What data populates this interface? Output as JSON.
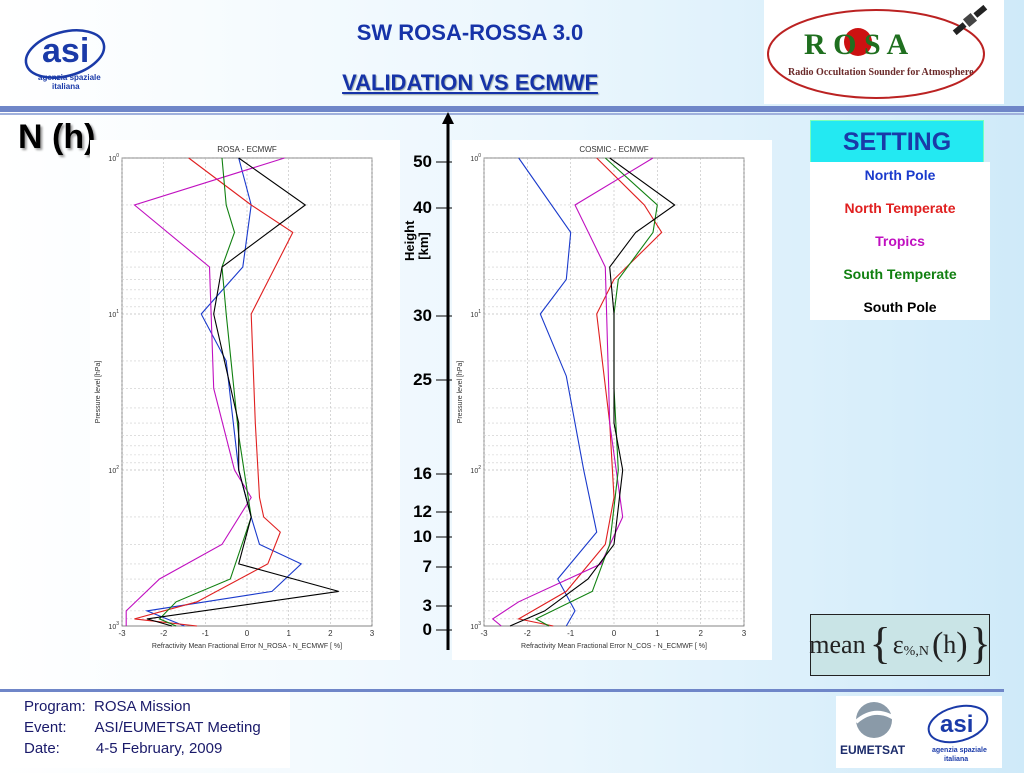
{
  "header": {
    "title": "SW ROSA-ROSSA 3.0",
    "subtitle": "VALIDATION VS ECMWF",
    "quantity": "N (h)"
  },
  "logos": {
    "asi_text_line1": "agenzia spaziale",
    "asi_text_line2": "italiana",
    "rosa_letters": "R O S A",
    "rosa_tagline": "Radio Occultation Sounder for Atmosphere",
    "eumetsat_text": "EUMETSAT"
  },
  "legend": {
    "title": "SETTING",
    "items": [
      {
        "label": "North Pole",
        "color": "#1a3acc"
      },
      {
        "label": "North Temperate",
        "color": "#e02020"
      },
      {
        "label": "Tropics",
        "color": "#c010c0"
      },
      {
        "label": "South Temperate",
        "color": "#108010"
      },
      {
        "label": "South Pole",
        "color": "#000000"
      }
    ]
  },
  "height_axis": {
    "label_line1": "Height",
    "label_line2": "[km]",
    "ticks": [
      "50",
      "40",
      "30",
      "25",
      "16",
      "12",
      "10",
      "7",
      "3",
      "0"
    ]
  },
  "formula": {
    "text": "mean",
    "symbol": "ε",
    "subscript": "%,N",
    "arg": "h"
  },
  "footer": {
    "program_label": "Program:",
    "program_value": "ROSA Mission",
    "event_label": "Event:",
    "event_value": "ASI/EUMETSAT Meeting",
    "date_label": "Date:",
    "date_value": "4-5 February, 2009"
  },
  "chart_data": [
    {
      "type": "line",
      "title": "ROSA - ECMWF",
      "xlabel": "Refractivity Mean Fractional Error N_ROSA - N_ECMWF [ %]",
      "ylabel": "Pressure level [hPa]",
      "xlim": [
        -3,
        3
      ],
      "ylim": [
        1000,
        1
      ],
      "y_scale": "log",
      "xticks": [
        "-3",
        "-2",
        "-1",
        "0",
        "1",
        "2",
        "3"
      ],
      "yticks": [
        {
          "v": 1,
          "label": "10^0"
        },
        {
          "v": 10,
          "label": "10^1"
        },
        {
          "v": 100,
          "label": "10^2"
        },
        {
          "v": 1000,
          "label": "10^3"
        }
      ],
      "series": [
        {
          "color": "#1a3acc",
          "points": [
            [
              -0.2,
              1
            ],
            [
              0.1,
              2
            ],
            [
              -0.1,
              5
            ],
            [
              -1.1,
              10
            ],
            [
              -0.5,
              20
            ],
            [
              -0.2,
              100
            ],
            [
              0.1,
              200
            ],
            [
              0.3,
              300
            ],
            [
              1.3,
              400
            ],
            [
              0.6,
              600
            ],
            [
              -2.4,
              800
            ],
            [
              -1.5,
              1000
            ]
          ]
        },
        {
          "color": "#e02020",
          "points": [
            [
              -1.4,
              1
            ],
            [
              0.1,
              2
            ],
            [
              1.1,
              3
            ],
            [
              0.1,
              10
            ],
            [
              0.2,
              50
            ],
            [
              0.3,
              150
            ],
            [
              0.4,
              200
            ],
            [
              0.8,
              250
            ],
            [
              0.5,
              400
            ],
            [
              -1.2,
              700
            ],
            [
              -2.7,
              900
            ],
            [
              -1.2,
              1000
            ]
          ]
        },
        {
          "color": "#c010c0",
          "points": [
            [
              0.9,
              1
            ],
            [
              -2.7,
              2
            ],
            [
              -0.9,
              5
            ],
            [
              -0.8,
              30
            ],
            [
              -0.3,
              100
            ],
            [
              0.1,
              150
            ],
            [
              -0.6,
              300
            ],
            [
              -2.1,
              500
            ],
            [
              -2.9,
              800
            ],
            [
              -2.9,
              1000
            ]
          ]
        },
        {
          "color": "#108010",
          "points": [
            [
              -0.6,
              1
            ],
            [
              -0.5,
              2
            ],
            [
              -0.3,
              3
            ],
            [
              -0.6,
              5
            ],
            [
              -0.5,
              10
            ],
            [
              -0.2,
              60
            ],
            [
              0.1,
              200
            ],
            [
              -0.4,
              500
            ],
            [
              -1.7,
              700
            ],
            [
              -2.1,
              900
            ],
            [
              -1.7,
              1000
            ]
          ]
        },
        {
          "color": "#000000",
          "points": [
            [
              -0.2,
              1
            ],
            [
              1.4,
              2
            ],
            [
              -0.6,
              5
            ],
            [
              -0.8,
              10
            ],
            [
              -0.2,
              50
            ],
            [
              -0.2,
              100
            ],
            [
              0.1,
              200
            ],
            [
              -0.2,
              400
            ],
            [
              2.2,
              600
            ],
            [
              -2.4,
              900
            ],
            [
              -1.8,
              1000
            ]
          ]
        }
      ]
    },
    {
      "type": "line",
      "title": "COSMIC - ECMWF",
      "xlabel": "Refractivity Mean Fractional Error N_COS - N_ECMWF [ %]",
      "ylabel": "Pressure level [hPa]",
      "xlim": [
        -3,
        3
      ],
      "ylim": [
        1000,
        1
      ],
      "y_scale": "log",
      "xticks": [
        "-3",
        "-2",
        "-1",
        "0",
        "1",
        "2",
        "3"
      ],
      "yticks": [
        {
          "v": 1,
          "label": "10^0"
        },
        {
          "v": 10,
          "label": "10^1"
        },
        {
          "v": 100,
          "label": "10^2"
        },
        {
          "v": 1000,
          "label": "10^3"
        }
      ],
      "series": [
        {
          "color": "#1a3acc",
          "points": [
            [
              -2.2,
              1
            ],
            [
              -1.0,
              3
            ],
            [
              -1.1,
              6
            ],
            [
              -1.7,
              10
            ],
            [
              -1.1,
              25
            ],
            [
              -0.7,
              100
            ],
            [
              -0.4,
              250
            ],
            [
              -1.3,
              500
            ],
            [
              -0.9,
              800
            ],
            [
              -1.1,
              1000
            ]
          ]
        },
        {
          "color": "#e02020",
          "points": [
            [
              -0.4,
              1
            ],
            [
              0.7,
              2
            ],
            [
              1.1,
              3
            ],
            [
              0.0,
              6
            ],
            [
              -0.4,
              10
            ],
            [
              -0.1,
              50
            ],
            [
              0.0,
              150
            ],
            [
              -0.2,
              300
            ],
            [
              -1.1,
              600
            ],
            [
              -2.2,
              900
            ],
            [
              -1.4,
              1000
            ]
          ]
        },
        {
          "color": "#c010c0",
          "points": [
            [
              0.9,
              1
            ],
            [
              -0.9,
              2
            ],
            [
              -0.2,
              5
            ],
            [
              -0.1,
              50
            ],
            [
              0.2,
              200
            ],
            [
              -0.3,
              400
            ],
            [
              -2.2,
              700
            ],
            [
              -2.8,
              900
            ],
            [
              -2.6,
              1000
            ]
          ]
        },
        {
          "color": "#108010",
          "points": [
            [
              -0.2,
              1
            ],
            [
              1.0,
              2
            ],
            [
              0.9,
              3
            ],
            [
              0.1,
              6
            ],
            [
              0.0,
              10
            ],
            [
              0.0,
              30
            ],
            [
              0.1,
              100
            ],
            [
              -0.1,
              300
            ],
            [
              -0.5,
              600
            ],
            [
              -1.8,
              900
            ],
            [
              -1.5,
              1000
            ]
          ]
        },
        {
          "color": "#000000",
          "points": [
            [
              -0.1,
              1
            ],
            [
              1.4,
              2
            ],
            [
              0.5,
              3
            ],
            [
              -0.1,
              5
            ],
            [
              0.0,
              10
            ],
            [
              0.0,
              50
            ],
            [
              0.2,
              100
            ],
            [
              0.0,
              300
            ],
            [
              -0.6,
              500
            ],
            [
              -1.6,
              800
            ],
            [
              -2.4,
              1000
            ]
          ]
        }
      ]
    }
  ]
}
